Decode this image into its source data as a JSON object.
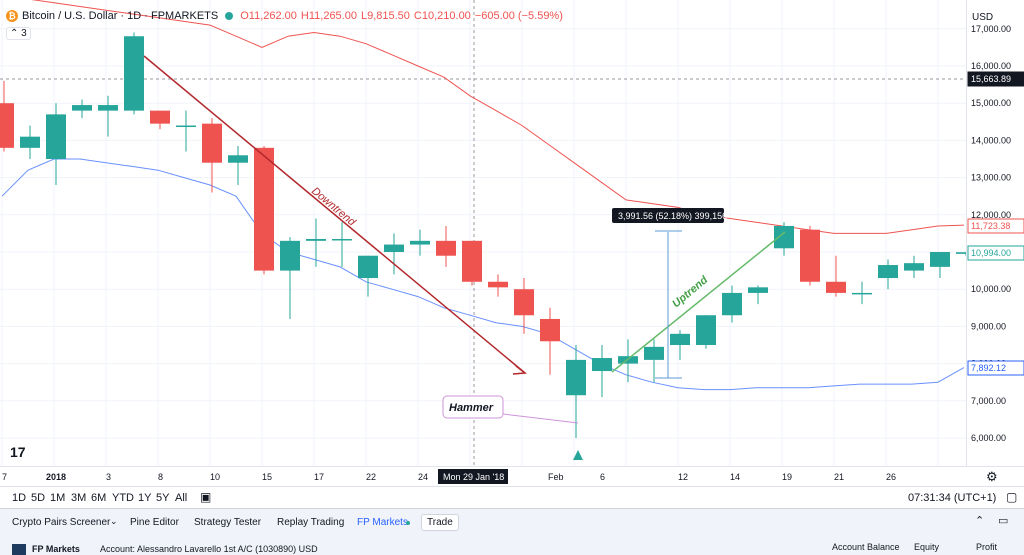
{
  "legend": {
    "symbol_title": "Bitcoin / U.S. Dollar · 1D · FPMARKETS",
    "open": "O11,262.00",
    "high": "H11,265.00",
    "low": "L9,815.50",
    "close": "C10,210.00",
    "change": "−605.00 (−5.59%)",
    "collapsed_count": "3"
  },
  "price_scale": {
    "currency": "USD",
    "ticks": [
      "17,000.00",
      "16,000.00",
      "15,000.00",
      "14,000.00",
      "13,000.00",
      "12,000.00",
      "11,000.00",
      "10,000.00",
      "9,000.00",
      "8,000.00",
      "7,000.00",
      "6,000.00"
    ],
    "crosshair_label": "15,663.89",
    "upper_ma_label": "11,723.38",
    "last_price_label": "10,994.00",
    "lower_ma_label": "7,892.12"
  },
  "time_scale": {
    "labels": [
      "7",
      "2018",
      "3",
      "8",
      "10",
      "15",
      "17",
      "22",
      "24",
      "Feb",
      "6",
      "12",
      "14",
      "19",
      "21",
      "26"
    ],
    "crosshair_date": "Mon 29 Jan '18"
  },
  "annotations": {
    "downtrend": "Downtrend",
    "uptrend": "Uptrend",
    "hammer": "Hammer",
    "measure": "3,991.56 (52.18%) 399,156"
  },
  "range_bar": {
    "ranges": [
      "1D",
      "5D",
      "1M",
      "3M",
      "6M",
      "YTD",
      "1Y",
      "5Y",
      "All"
    ],
    "clock": "07:31:34 (UTC+1)"
  },
  "bottom_panel": {
    "tabs": [
      "Crypto Pairs Screener",
      "Pine Editor",
      "Strategy Tester",
      "Replay Trading",
      "FP Markets",
      "Trade"
    ],
    "broker": "FP Markets",
    "account": "Account: Alessandro Lavarello 1st A/C (1030890) USD",
    "col_balance": "Account Balance",
    "col_equity": "Equity",
    "col_profit": "Profit"
  },
  "colors": {
    "bull": "#26a69a",
    "bear": "#ef5350",
    "downtrend_line": "#b2282c",
    "uptrend_line": "#66bb6a",
    "upper_ma": "#ef5350",
    "lower_ma": "#2962ff",
    "hammer_box": "#ce93d8"
  },
  "chart_data": {
    "type": "candlestick",
    "candles": [
      {
        "o": 15000,
        "h": 15600,
        "l": 13700,
        "c": 13800
      },
      {
        "o": 13800,
        "h": 14400,
        "l": 13500,
        "c": 14100
      },
      {
        "o": 13500,
        "h": 15000,
        "l": 12800,
        "c": 14700
      },
      {
        "o": 14800,
        "h": 15100,
        "l": 14600,
        "c": 14950
      },
      {
        "o": 14800,
        "h": 15200,
        "l": 14100,
        "c": 14950
      },
      {
        "o": 14800,
        "h": 16900,
        "l": 14700,
        "c": 16800
      },
      {
        "o": 14800,
        "h": 14800,
        "l": 14300,
        "c": 14450
      },
      {
        "o": 14400,
        "h": 14800,
        "l": 13700,
        "c": 14400
      },
      {
        "o": 14450,
        "h": 14600,
        "l": 12600,
        "c": 13400
      },
      {
        "o": 13400,
        "h": 13850,
        "l": 12800,
        "c": 13600
      },
      {
        "o": 13800,
        "h": 13850,
        "l": 10400,
        "c": 10500
      },
      {
        "o": 10500,
        "h": 11400,
        "l": 9200,
        "c": 11300
      },
      {
        "o": 11300,
        "h": 11900,
        "l": 10600,
        "c": 11350
      },
      {
        "o": 11350,
        "h": 11800,
        "l": 10600,
        "c": 11350
      },
      {
        "o": 10300,
        "h": 10900,
        "l": 9800,
        "c": 10900
      },
      {
        "o": 11000,
        "h": 11500,
        "l": 10400,
        "c": 11200
      },
      {
        "o": 11200,
        "h": 11600,
        "l": 10900,
        "c": 11300
      },
      {
        "o": 11300,
        "h": 11700,
        "l": 10600,
        "c": 10900
      },
      {
        "o": 11300,
        "h": 11300,
        "l": 10100,
        "c": 10200
      },
      {
        "o": 10200,
        "h": 10400,
        "l": 9800,
        "c": 10050
      },
      {
        "o": 10000,
        "h": 10300,
        "l": 8800,
        "c": 9300
      },
      {
        "o": 9200,
        "h": 9500,
        "l": 7700,
        "c": 8600
      },
      {
        "o": 7150,
        "h": 8500,
        "l": 6000,
        "c": 8100
      },
      {
        "o": 7800,
        "h": 8500,
        "l": 7100,
        "c": 8150
      },
      {
        "o": 8000,
        "h": 8650,
        "l": 7500,
        "c": 8200
      },
      {
        "o": 8100,
        "h": 8650,
        "l": 7500,
        "c": 8450
      },
      {
        "o": 8500,
        "h": 8900,
        "l": 8100,
        "c": 8800
      },
      {
        "o": 8500,
        "h": 9300,
        "l": 8400,
        "c": 9300
      },
      {
        "o": 9300,
        "h": 10100,
        "l": 9100,
        "c": 9900
      },
      {
        "o": 9900,
        "h": 10100,
        "l": 9600,
        "c": 10050
      },
      {
        "o": 11100,
        "h": 11800,
        "l": 10900,
        "c": 11700
      },
      {
        "o": 11600,
        "h": 11700,
        "l": 10100,
        "c": 10200
      },
      {
        "o": 10200,
        "h": 10900,
        "l": 9800,
        "c": 9900
      },
      {
        "o": 9900,
        "h": 10200,
        "l": 9600,
        "c": 9900
      },
      {
        "o": 10300,
        "h": 10800,
        "l": 10000,
        "c": 10650
      },
      {
        "o": 10500,
        "h": 10900,
        "l": 10300,
        "c": 10700
      },
      {
        "o": 10600,
        "h": 11000,
        "l": 10300,
        "c": 11000
      },
      {
        "o": 10950,
        "h": 11000,
        "l": 10900,
        "c": 10994
      }
    ],
    "upper_ma": [
      17900,
      17800,
      17700,
      17600,
      17500,
      17400,
      17300,
      17200,
      17100,
      16800,
      16500,
      16800,
      16900,
      16800,
      16600,
      16300,
      16000,
      15700,
      15200,
      14800,
      14400,
      13900,
      13400,
      12900,
      12400,
      12300,
      12200,
      12000,
      11900,
      11800,
      11700,
      11600,
      11500,
      11500,
      11500,
      11600,
      11700,
      11723
    ],
    "lower_ma": [
      12500,
      13200,
      13500,
      13500,
      13400,
      13300,
      13200,
      13000,
      12800,
      12500,
      11500,
      11000,
      10800,
      10600,
      10200,
      10000,
      9800,
      9500,
      9300,
      9100,
      9000,
      8800,
      8400,
      8000,
      7700,
      7500,
      7350,
      7300,
      7300,
      7350,
      7350,
      7350,
      7400,
      7450,
      7450,
      7450,
      7500,
      7892
    ],
    "ylim": [
      5400,
      17400
    ]
  }
}
